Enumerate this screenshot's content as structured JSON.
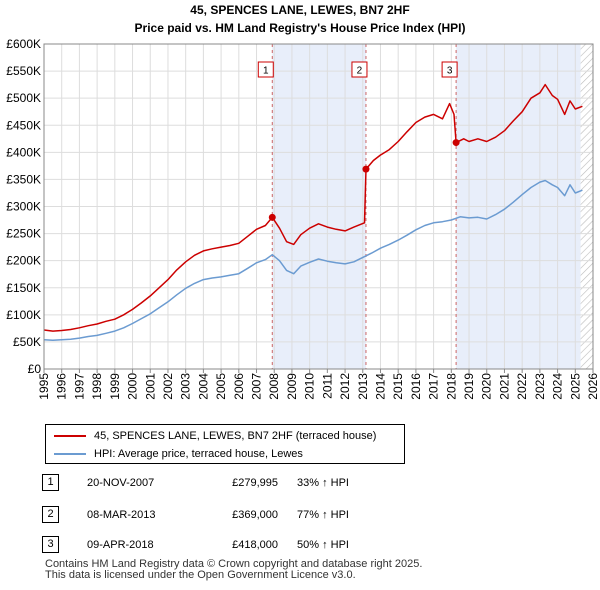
{
  "chart_data": {
    "type": "line",
    "title": "45, SPENCES LANE, LEWES, BN7 2HF",
    "subtitle": "Price paid vs. HM Land Registry's House Price Index (HPI)",
    "xlim": [
      1995,
      2026
    ],
    "ylim": [
      0,
      600000
    ],
    "x_ticks": [
      "1995",
      "1996",
      "1997",
      "1998",
      "1999",
      "2000",
      "2001",
      "2002",
      "2003",
      "2004",
      "2005",
      "2006",
      "2007",
      "2008",
      "2009",
      "2010",
      "2011",
      "2012",
      "2013",
      "2014",
      "2015",
      "2016",
      "2017",
      "2018",
      "2019",
      "2020",
      "2021",
      "2022",
      "2023",
      "2024",
      "2025",
      "2026"
    ],
    "y_ticks": [
      {
        "value": 0,
        "label": "£0"
      },
      {
        "value": 50000,
        "label": "£50K"
      },
      {
        "value": 100000,
        "label": "£100K"
      },
      {
        "value": 150000,
        "label": "£150K"
      },
      {
        "value": 200000,
        "label": "£200K"
      },
      {
        "value": 250000,
        "label": "£250K"
      },
      {
        "value": 300000,
        "label": "£300K"
      },
      {
        "value": 350000,
        "label": "£350K"
      },
      {
        "value": 400000,
        "label": "£400K"
      },
      {
        "value": 450000,
        "label": "£450K"
      },
      {
        "value": 500000,
        "label": "£500K"
      },
      {
        "value": 550000,
        "label": "£550K"
      },
      {
        "value": 600000,
        "label": "£600K"
      }
    ],
    "grid": true,
    "shaded_ranges": [
      [
        2007.89,
        2013.18
      ],
      [
        2018.27,
        2025.3
      ]
    ],
    "hatched_from": 2025.3,
    "sale_markers": [
      {
        "label": "1",
        "x": 2007.89,
        "y": 279995
      },
      {
        "label": "2",
        "x": 2013.18,
        "y": 369000
      },
      {
        "label": "3",
        "x": 2018.27,
        "y": 418000
      }
    ],
    "series": [
      {
        "name": "45, SPENCES LANE, LEWES, BN7 2HF (terraced house)",
        "color": "#cc0000",
        "x": [
          1995,
          1995.5,
          1996,
          1996.5,
          1997,
          1997.5,
          1998,
          1998.5,
          1999,
          1999.5,
          2000,
          2000.5,
          2001,
          2001.5,
          2002,
          2002.5,
          2003,
          2003.5,
          2004,
          2004.5,
          2005,
          2005.5,
          2006,
          2006.5,
          2007,
          2007.5,
          2007.89,
          2008.3,
          2008.7,
          2009.1,
          2009.5,
          2010,
          2010.5,
          2011,
          2011.5,
          2012,
          2012.5,
          2013.1,
          2013.18,
          2013.6,
          2014,
          2014.5,
          2015,
          2015.5,
          2016,
          2016.5,
          2017,
          2017.5,
          2017.9,
          2018.15,
          2018.27,
          2018.7,
          2019,
          2019.5,
          2020,
          2020.5,
          2021,
          2021.5,
          2022,
          2022.5,
          2023,
          2023.3,
          2023.7,
          2024,
          2024.4,
          2024.7,
          2025,
          2025.4
        ],
        "y": [
          72000,
          70000,
          71000,
          73000,
          76000,
          80000,
          83000,
          88000,
          92000,
          100000,
          110000,
          122000,
          135000,
          150000,
          165000,
          183000,
          198000,
          210000,
          218000,
          222000,
          225000,
          228000,
          232000,
          245000,
          258000,
          265000,
          279995,
          260000,
          235000,
          230000,
          248000,
          260000,
          268000,
          262000,
          258000,
          255000,
          262000,
          270000,
          369000,
          385000,
          395000,
          405000,
          420000,
          438000,
          455000,
          465000,
          470000,
          462000,
          490000,
          470000,
          418000,
          425000,
          420000,
          425000,
          420000,
          428000,
          440000,
          458000,
          475000,
          500000,
          510000,
          525000,
          505000,
          498000,
          470000,
          495000,
          480000,
          485000
        ]
      },
      {
        "name": "HPI: Average price, terraced house, Lewes",
        "color": "#6b9bd1",
        "x": [
          1995,
          1995.5,
          1996,
          1996.5,
          1997,
          1997.5,
          1998,
          1998.5,
          1999,
          1999.5,
          2000,
          2000.5,
          2001,
          2001.5,
          2002,
          2002.5,
          2003,
          2003.5,
          2004,
          2004.5,
          2005,
          2005.5,
          2006,
          2006.5,
          2007,
          2007.5,
          2007.89,
          2008.3,
          2008.7,
          2009.1,
          2009.5,
          2010,
          2010.5,
          2011,
          2011.5,
          2012,
          2012.5,
          2013,
          2013.5,
          2014,
          2014.5,
          2015,
          2015.5,
          2016,
          2016.5,
          2017,
          2017.5,
          2018,
          2018.5,
          2019,
          2019.5,
          2020,
          2020.5,
          2021,
          2021.5,
          2022,
          2022.5,
          2023,
          2023.3,
          2023.7,
          2024,
          2024.4,
          2024.7,
          2025,
          2025.4
        ],
        "y": [
          54000,
          53000,
          54000,
          55000,
          57000,
          60000,
          62000,
          66000,
          70000,
          76000,
          84000,
          93000,
          102000,
          113000,
          124000,
          137000,
          149000,
          158000,
          165000,
          168000,
          170000,
          173000,
          176000,
          186000,
          196000,
          202000,
          211000,
          200000,
          182000,
          176000,
          190000,
          197000,
          203000,
          199000,
          196000,
          194000,
          198000,
          206000,
          214000,
          223000,
          230000,
          238000,
          247000,
          257000,
          265000,
          270000,
          272000,
          275000,
          281000,
          279000,
          280000,
          277000,
          285000,
          295000,
          308000,
          322000,
          335000,
          345000,
          348000,
          340000,
          335000,
          320000,
          340000,
          325000,
          330000
        ]
      }
    ]
  },
  "legend": {
    "items": [
      {
        "label": "45, SPENCES LANE, LEWES, BN7 2HF (terraced house)",
        "color": "#cc0000"
      },
      {
        "label": "HPI: Average price, terraced house, Lewes",
        "color": "#6b9bd1"
      }
    ]
  },
  "transactions": [
    {
      "num": "1",
      "date": "20-NOV-2007",
      "price": "£279,995",
      "hpi": "33% ↑ HPI"
    },
    {
      "num": "2",
      "date": "08-MAR-2013",
      "price": "£369,000",
      "hpi": "77% ↑ HPI"
    },
    {
      "num": "3",
      "date": "09-APR-2018",
      "price": "£418,000",
      "hpi": "50% ↑ HPI"
    }
  ],
  "footer": {
    "line1": "Contains HM Land Registry data © Crown copyright and database right 2025.",
    "line2": "This data is licensed under the Open Government Licence v3.0."
  }
}
